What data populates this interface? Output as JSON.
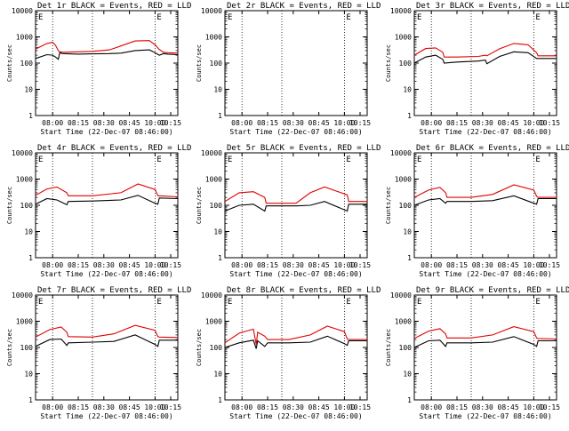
{
  "figure": {
    "x_tick_labels": [
      "08:00",
      "08:15",
      "08:30",
      "08:45",
      "10:00",
      "10:15"
    ],
    "y_tick_labels": [
      "1",
      "10",
      "100",
      "1000",
      "10000"
    ],
    "ylabel": "Counts/sec",
    "xlabel": "Start Time (22-Dec-07 08:46:00)",
    "colors": {
      "events": "#000000",
      "lld": "#e00000",
      "axes": "#000000",
      "background": "#ffffff"
    }
  },
  "chart_data": [
    {
      "type": "line",
      "title": "Det 1r BLACK = Events, RED = LLD",
      "xlabel": "Start Time (22-Dec-07 08:46:00)",
      "ylabel": "Counts/sec",
      "y_scale": "log",
      "ylim": [
        1,
        10000
      ],
      "x_ticks": [
        "08:00",
        "08:15",
        "08:30",
        "08:45",
        "10:00",
        "10:15"
      ],
      "legend_marker": "E",
      "series": [
        {
          "color": "#000000",
          "x": [
            0.0,
            0.08,
            0.12,
            0.14,
            0.16,
            0.17,
            0.19,
            0.3,
            0.4,
            0.52,
            0.6,
            0.7,
            0.8,
            0.84,
            0.87,
            0.9,
            0.93,
            1.0
          ],
          "y": [
            150,
            210,
            200,
            170,
            140,
            250,
            230,
            220,
            225,
            230,
            240,
            300,
            320,
            250,
            200,
            230,
            220,
            210
          ]
        },
        {
          "color": "#e00000",
          "x": [
            0.0,
            0.08,
            0.12,
            0.14,
            0.16,
            0.17,
            0.19,
            0.3,
            0.4,
            0.52,
            0.6,
            0.7,
            0.8,
            0.84,
            0.87,
            0.9,
            0.93,
            1.0
          ],
          "y": [
            340,
            560,
            620,
            480,
            300,
            270,
            260,
            270,
            280,
            320,
            450,
            700,
            720,
            500,
            330,
            260,
            250,
            240
          ]
        }
      ]
    },
    {
      "type": "line",
      "title": "Det 2r BLACK = Events, RED = LLD",
      "xlabel": "Start Time (22-Dec-07 08:46:00)",
      "ylabel": "Counts/sec",
      "y_scale": "log",
      "ylim": [
        1,
        10000
      ],
      "x_ticks": [
        "08:00",
        "08:15",
        "08:30",
        "08:45",
        "10:00",
        "10:15"
      ],
      "legend_marker": "E",
      "series": []
    },
    {
      "type": "line",
      "title": "Det 3r BLACK = Events, RED = LLD",
      "xlabel": "Start Time (22-Dec-07 08:46:00)",
      "ylabel": "Counts/sec",
      "y_scale": "log",
      "ylim": [
        1,
        10000
      ],
      "x_ticks": [
        "08:00",
        "08:15",
        "08:30",
        "08:45",
        "10:00",
        "10:15"
      ],
      "legend_marker": "E",
      "series": [
        {
          "color": "#000000",
          "x": [
            0.0,
            0.08,
            0.15,
            0.2,
            0.21,
            0.3,
            0.45,
            0.5,
            0.51,
            0.6,
            0.7,
            0.8,
            0.86,
            0.87,
            1.0
          ],
          "y": [
            100,
            170,
            200,
            140,
            100,
            110,
            120,
            130,
            95,
            180,
            270,
            250,
            150,
            150,
            150
          ]
        },
        {
          "color": "#e00000",
          "x": [
            0.0,
            0.08,
            0.15,
            0.2,
            0.21,
            0.3,
            0.45,
            0.5,
            0.51,
            0.6,
            0.7,
            0.8,
            0.86,
            0.87,
            1.0
          ],
          "y": [
            200,
            360,
            380,
            260,
            170,
            170,
            180,
            200,
            190,
            350,
            560,
            500,
            250,
            190,
            190
          ]
        }
      ]
    },
    {
      "type": "line",
      "title": "Det 4r BLACK = Events, RED = LLD",
      "xlabel": "Start Time (22-Dec-07 08:46:00)",
      "ylabel": "Counts/sec",
      "y_scale": "log",
      "ylim": [
        1,
        10000
      ],
      "x_ticks": [
        "08:00",
        "08:15",
        "08:30",
        "08:45",
        "10:00",
        "10:15"
      ],
      "legend_marker": "E",
      "series": [
        {
          "color": "#000000",
          "x": [
            0.0,
            0.08,
            0.15,
            0.22,
            0.23,
            0.4,
            0.6,
            0.72,
            0.84,
            0.86,
            0.87,
            1.0
          ],
          "y": [
            110,
            180,
            160,
            105,
            140,
            145,
            160,
            240,
            120,
            110,
            190,
            180
          ]
        },
        {
          "color": "#e00000",
          "x": [
            0.0,
            0.08,
            0.15,
            0.22,
            0.23,
            0.4,
            0.6,
            0.72,
            0.84,
            0.86,
            0.87,
            1.0
          ],
          "y": [
            240,
            420,
            500,
            300,
            230,
            230,
            300,
            650,
            400,
            230,
            230,
            210
          ]
        }
      ]
    },
    {
      "type": "line",
      "title": "Det 5r BLACK = Events, RED = LLD",
      "xlabel": "Start Time (22-Dec-07 08:46:00)",
      "ylabel": "Counts/sec",
      "y_scale": "log",
      "ylim": [
        1,
        10000
      ],
      "x_ticks": [
        "08:00",
        "08:15",
        "08:30",
        "08:45",
        "10:00",
        "10:15"
      ],
      "legend_marker": "E",
      "series": [
        {
          "color": "#000000",
          "x": [
            0.0,
            0.1,
            0.2,
            0.28,
            0.29,
            0.5,
            0.6,
            0.7,
            0.86,
            0.87,
            1.0
          ],
          "y": [
            60,
            100,
            110,
            60,
            95,
            95,
            100,
            140,
            60,
            110,
            110
          ]
        },
        {
          "color": "#e00000",
          "x": [
            0.0,
            0.1,
            0.2,
            0.28,
            0.29,
            0.5,
            0.6,
            0.7,
            0.86,
            0.87,
            1.0
          ],
          "y": [
            140,
            300,
            330,
            200,
            120,
            120,
            300,
            500,
            250,
            140,
            140
          ]
        }
      ]
    },
    {
      "type": "line",
      "title": "Det 6r BLACK = Events, RED = LLD",
      "xlabel": "Start Time (22-Dec-07 08:46:00)",
      "ylabel": "Counts/sec",
      "y_scale": "log",
      "ylim": [
        1,
        10000
      ],
      "x_ticks": [
        "08:00",
        "08:15",
        "08:30",
        "08:45",
        "10:00",
        "10:15"
      ],
      "legend_marker": "E",
      "series": [
        {
          "color": "#000000",
          "x": [
            0.0,
            0.1,
            0.18,
            0.22,
            0.23,
            0.4,
            0.55,
            0.7,
            0.84,
            0.86,
            0.87,
            1.0
          ],
          "y": [
            100,
            160,
            180,
            120,
            140,
            140,
            150,
            230,
            120,
            110,
            180,
            180
          ]
        },
        {
          "color": "#e00000",
          "x": [
            0.0,
            0.1,
            0.18,
            0.22,
            0.23,
            0.4,
            0.55,
            0.7,
            0.84,
            0.86,
            0.87,
            1.0
          ],
          "y": [
            200,
            380,
            480,
            300,
            200,
            200,
            260,
            600,
            380,
            220,
            200,
            200
          ]
        }
      ]
    },
    {
      "type": "line",
      "title": "Det 7r BLACK = Events, RED = LLD",
      "xlabel": "Start Time (22-Dec-07 08:46:00)",
      "ylabel": "Counts/sec",
      "y_scale": "log",
      "ylim": [
        1,
        10000
      ],
      "x_ticks": [
        "08:00",
        "08:15",
        "08:30",
        "08:45",
        "10:00",
        "10:15"
      ],
      "legend_marker": "E",
      "series": [
        {
          "color": "#000000",
          "x": [
            0.0,
            0.1,
            0.18,
            0.22,
            0.23,
            0.4,
            0.55,
            0.7,
            0.84,
            0.86,
            0.87,
            1.0
          ],
          "y": [
            110,
            200,
            210,
            120,
            150,
            160,
            170,
            300,
            130,
            110,
            190,
            190
          ]
        },
        {
          "color": "#e00000",
          "x": [
            0.0,
            0.1,
            0.18,
            0.22,
            0.23,
            0.4,
            0.55,
            0.7,
            0.84,
            0.86,
            0.87,
            1.0
          ],
          "y": [
            250,
            480,
            600,
            380,
            260,
            250,
            330,
            700,
            450,
            260,
            250,
            240
          ]
        }
      ]
    },
    {
      "type": "line",
      "title": "Det 8r BLACK = Events, RED = LLD",
      "xlabel": "Start Time (22-Dec-07 08:46:00)",
      "ylabel": "Counts/sec",
      "y_scale": "log",
      "ylim": [
        1,
        10000
      ],
      "x_ticks": [
        "08:00",
        "08:15",
        "08:30",
        "08:45",
        "10:00",
        "10:15"
      ],
      "legend_marker": "E",
      "series": [
        {
          "color": "#000000",
          "x": [
            0.0,
            0.1,
            0.2,
            0.22,
            0.23,
            0.28,
            0.3,
            0.45,
            0.6,
            0.72,
            0.84,
            0.86,
            0.87,
            1.0
          ],
          "y": [
            100,
            150,
            190,
            90,
            180,
            110,
            150,
            150,
            160,
            270,
            140,
            120,
            180,
            180
          ]
        },
        {
          "color": "#e00000",
          "x": [
            0.0,
            0.1,
            0.2,
            0.22,
            0.23,
            0.28,
            0.3,
            0.45,
            0.6,
            0.72,
            0.84,
            0.86,
            0.87,
            1.0
          ],
          "y": [
            150,
            350,
            500,
            130,
            380,
            270,
            200,
            200,
            300,
            650,
            400,
            210,
            200,
            200
          ]
        }
      ]
    },
    {
      "type": "line",
      "title": "Det 9r BLACK = Events, RED = LLD",
      "xlabel": "Start Time (22-Dec-07 08:46:00)",
      "ylabel": "Counts/sec",
      "y_scale": "log",
      "ylim": [
        1,
        10000
      ],
      "x_ticks": [
        "08:00",
        "08:15",
        "08:30",
        "08:45",
        "10:00",
        "10:15"
      ],
      "legend_marker": "E",
      "series": [
        {
          "color": "#000000",
          "x": [
            0.0,
            0.1,
            0.18,
            0.22,
            0.23,
            0.4,
            0.55,
            0.7,
            0.84,
            0.86,
            0.87,
            1.0
          ],
          "y": [
            100,
            180,
            190,
            110,
            150,
            150,
            160,
            260,
            130,
            110,
            180,
            180
          ]
        },
        {
          "color": "#e00000",
          "x": [
            0.0,
            0.1,
            0.18,
            0.22,
            0.23,
            0.4,
            0.55,
            0.7,
            0.84,
            0.86,
            0.87,
            1.0
          ],
          "y": [
            220,
            420,
            520,
            330,
            230,
            230,
            300,
            620,
            400,
            230,
            220,
            210
          ]
        }
      ]
    }
  ]
}
